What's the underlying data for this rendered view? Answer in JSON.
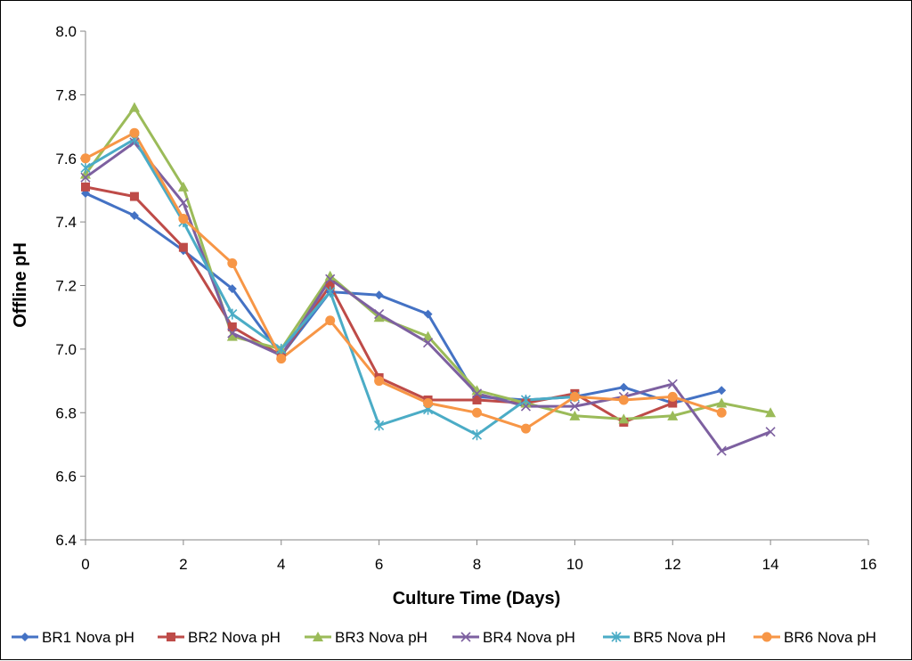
{
  "chart_data": {
    "type": "line",
    "title": "",
    "xlabel": "Culture Time (Days)",
    "ylabel": "Offline pH",
    "xlim": [
      0,
      16
    ],
    "ylim": [
      6.4,
      8.0
    ],
    "x_ticks": [
      "0",
      "2",
      "4",
      "6",
      "8",
      "10",
      "12",
      "14",
      "16"
    ],
    "y_ticks": [
      "6.4",
      "6.6",
      "6.8",
      "7.0",
      "7.2",
      "7.4",
      "7.6",
      "7.8",
      "8.0"
    ],
    "grid": false,
    "legend_position": "bottom",
    "series": [
      {
        "name": "BR1 Nova pH",
        "color": "#4472C4",
        "marker": "diamond",
        "points": [
          [
            0,
            7.49
          ],
          [
            1,
            7.42
          ],
          [
            2,
            7.31
          ],
          [
            3,
            7.19
          ],
          [
            4,
            6.98
          ],
          [
            5,
            7.18
          ],
          [
            6,
            7.17
          ],
          [
            7,
            7.11
          ],
          [
            8,
            6.85
          ],
          [
            9,
            6.84
          ],
          [
            10,
            6.85
          ],
          [
            11,
            6.88
          ],
          [
            12,
            6.83
          ],
          [
            13,
            6.87
          ]
        ]
      },
      {
        "name": "BR2 Nova pH",
        "color": "#BE4B48",
        "marker": "square",
        "points": [
          [
            0,
            7.51
          ],
          [
            1,
            7.48
          ],
          [
            2,
            7.32
          ],
          [
            3,
            7.07
          ],
          [
            4,
            6.98
          ],
          [
            5,
            7.2
          ],
          [
            6,
            6.91
          ],
          [
            7,
            6.84
          ],
          [
            8,
            6.84
          ],
          [
            9,
            6.83
          ],
          [
            10,
            6.86
          ],
          [
            11,
            6.77
          ],
          [
            12,
            6.83
          ]
        ]
      },
      {
        "name": "BR3 Nova pH",
        "color": "#9BBB59",
        "marker": "triangle",
        "points": [
          [
            0,
            7.55
          ],
          [
            1,
            7.76
          ],
          [
            2,
            7.51
          ],
          [
            3,
            7.04
          ],
          [
            4,
            7.0
          ],
          [
            5,
            7.23
          ],
          [
            6,
            7.1
          ],
          [
            7,
            7.04
          ],
          [
            8,
            6.87
          ],
          [
            9,
            6.83
          ],
          [
            10,
            6.79
          ],
          [
            11,
            6.78
          ],
          [
            12,
            6.79
          ],
          [
            13,
            6.83
          ],
          [
            14,
            6.8
          ]
        ]
      },
      {
        "name": "BR4 Nova pH",
        "color": "#7D60A0",
        "marker": "x",
        "points": [
          [
            0,
            7.54
          ],
          [
            1,
            7.65
          ],
          [
            2,
            7.46
          ],
          [
            3,
            7.05
          ],
          [
            4,
            6.98
          ],
          [
            5,
            7.22
          ],
          [
            6,
            7.11
          ],
          [
            7,
            7.02
          ],
          [
            8,
            6.86
          ],
          [
            9,
            6.82
          ],
          [
            10,
            6.82
          ],
          [
            11,
            6.85
          ],
          [
            12,
            6.89
          ],
          [
            13,
            6.68
          ],
          [
            14,
            6.74
          ]
        ]
      },
      {
        "name": "BR5 Nova pH",
        "color": "#4BACC6",
        "marker": "asterisk",
        "points": [
          [
            0,
            7.57
          ],
          [
            1,
            7.66
          ],
          [
            2,
            7.4
          ],
          [
            3,
            7.11
          ],
          [
            4,
            7.0
          ],
          [
            5,
            7.18
          ],
          [
            6,
            6.76
          ],
          [
            7,
            6.81
          ],
          [
            8,
            6.73
          ],
          [
            9,
            6.84
          ],
          [
            10,
            6.85
          ]
        ]
      },
      {
        "name": "BR6 Nova pH",
        "color": "#F79646",
        "marker": "circle",
        "points": [
          [
            0,
            7.6
          ],
          [
            1,
            7.68
          ],
          [
            2,
            7.41
          ],
          [
            3,
            7.27
          ],
          [
            4,
            6.97
          ],
          [
            5,
            7.09
          ],
          [
            6,
            6.9
          ],
          [
            7,
            6.83
          ],
          [
            8,
            6.8
          ],
          [
            9,
            6.75
          ],
          [
            10,
            6.85
          ],
          [
            11,
            6.84
          ],
          [
            12,
            6.85
          ],
          [
            13,
            6.8
          ]
        ]
      }
    ]
  }
}
